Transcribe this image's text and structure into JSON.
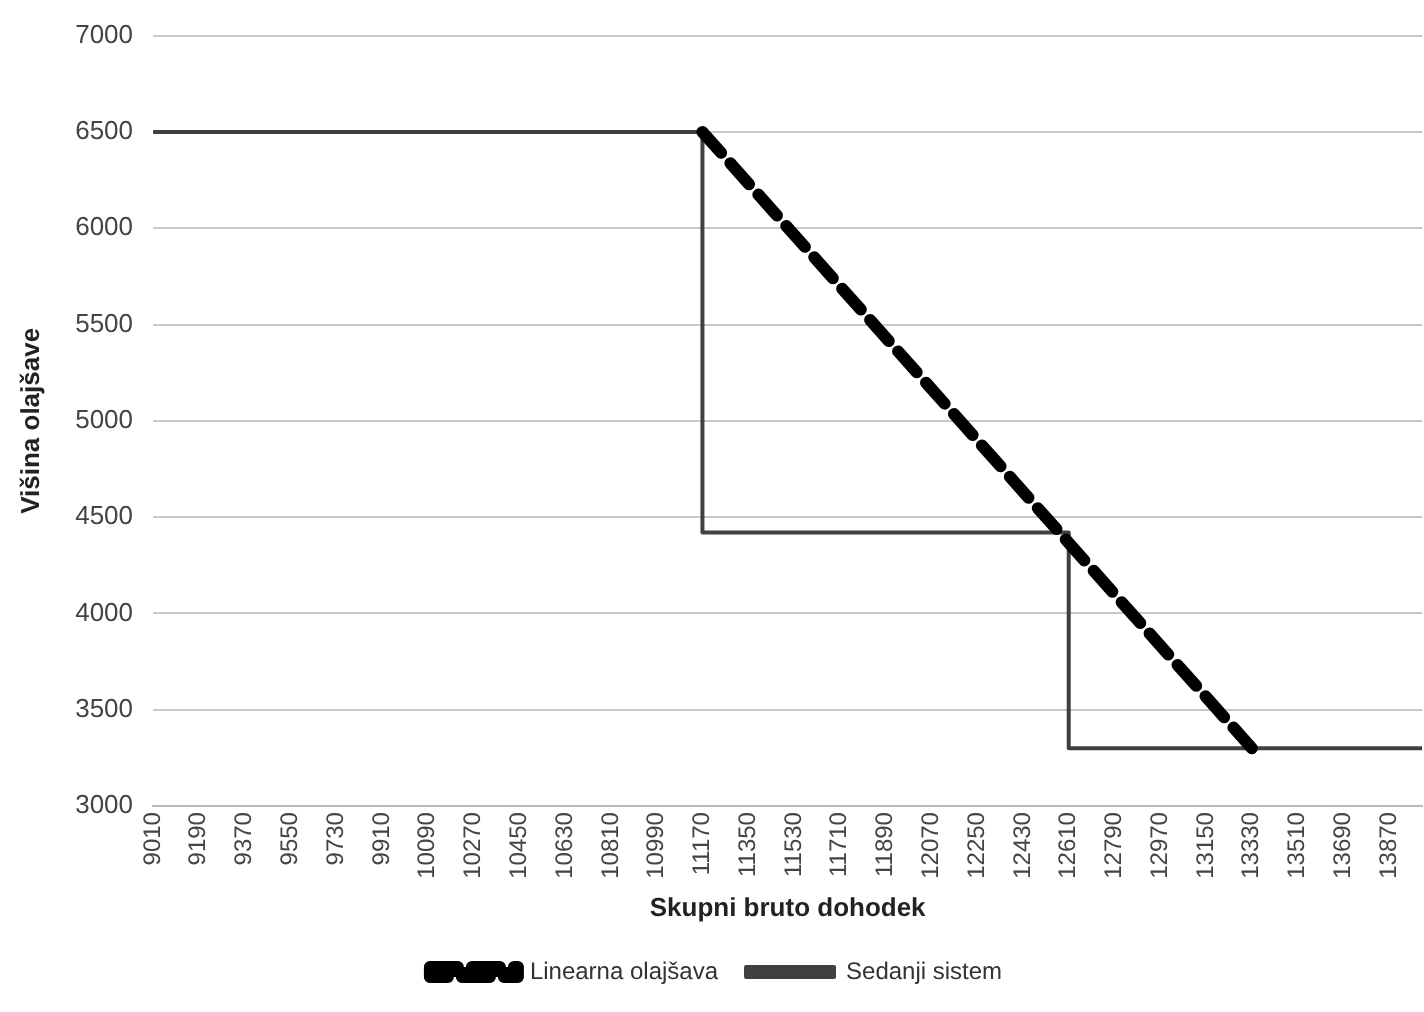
{
  "chart_data": {
    "type": "line",
    "xlabel": "Skupni bruto dohodek",
    "ylabel": "Višina olajšave",
    "xlim": [
      9010,
      14000
    ],
    "xticks": [
      9010,
      9190,
      9370,
      9550,
      9730,
      9910,
      10090,
      10270,
      10450,
      10630,
      10810,
      10990,
      11170,
      11350,
      11530,
      11710,
      11890,
      12070,
      12250,
      12430,
      12610,
      12790,
      12970,
      13150,
      13330,
      13510,
      13690,
      13870
    ],
    "ylim": [
      3000,
      7000
    ],
    "yticks": [
      3000,
      3500,
      4000,
      4500,
      5000,
      5500,
      6000,
      6500,
      7000
    ],
    "grid": "y",
    "legend": "bottom",
    "marker": "none",
    "series": [
      {
        "name": "Linearna olajšava",
        "color": "#000000",
        "line_style": "dashed",
        "x": [
          11170,
          13330
        ],
        "values": [
          6500,
          3300
        ]
      },
      {
        "name": "Sedanji sistem",
        "color": "#404040",
        "line_style": "solid",
        "x": [
          9010,
          11170,
          11170,
          12610,
          12610,
          14000
        ],
        "values": [
          6500,
          6500,
          4420,
          4420,
          3300,
          3300
        ]
      }
    ]
  }
}
